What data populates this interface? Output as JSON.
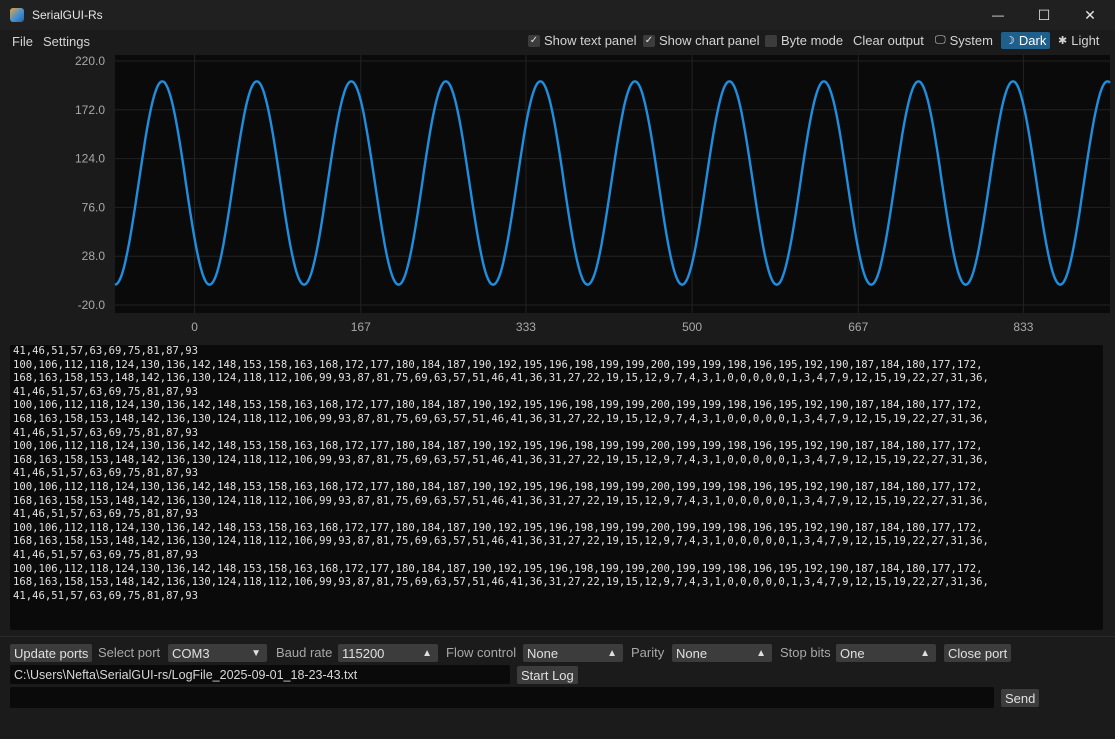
{
  "window": {
    "title": "SerialGUI-Rs",
    "minimize_glyph": "—",
    "maximize_glyph": "☐",
    "close_glyph": "✕"
  },
  "menu": {
    "file": "File",
    "settings": "Settings"
  },
  "toolbar": {
    "show_text_panel": {
      "label": "Show text panel",
      "checked": true
    },
    "show_chart_panel": {
      "label": "Show chart panel",
      "checked": true
    },
    "byte_mode": {
      "label": "Byte mode",
      "checked": false
    },
    "clear_output": "Clear output",
    "theme_system": "System",
    "theme_dark": "Dark",
    "theme_light": "Light",
    "check_glyph": "✓",
    "system_icon": "🖵",
    "dark_icon": "☽",
    "light_icon": "✱"
  },
  "chart_data": {
    "type": "line",
    "title": "",
    "xlabel": "",
    "ylabel": "",
    "ylim": [
      -20,
      220
    ],
    "xlim": [
      -80,
      920
    ],
    "y_ticks": [
      "220.0",
      "172.0",
      "124.0",
      "76.0",
      "28.0",
      "-20.0"
    ],
    "x_ticks": [
      "0",
      "167",
      "333",
      "500",
      "667",
      "833"
    ],
    "x_tick_values": [
      0,
      167,
      333,
      500,
      667,
      833
    ],
    "series": [
      {
        "name": "signal",
        "color": "#1e8fe0",
        "period": 95,
        "min": 0,
        "max": 200,
        "start_value": 0,
        "x_start": -80,
        "x_end": 920
      }
    ]
  },
  "output_lines": [
    "41,46,51,57,63,69,75,81,87,93",
    "100,106,112,118,124,130,136,142,148,153,158,163,168,172,177,180,184,187,190,192,195,196,198,199,199,200,199,199,198,196,195,192,190,187,184,180,177,172,",
    "168,163,158,153,148,142,136,130,124,118,112,106,99,93,87,81,75,69,63,57,51,46,41,36,31,27,22,19,15,12,9,7,4,3,1,0,0,0,0,0,1,3,4,7,9,12,15,19,22,27,31,36,",
    "41,46,51,57,63,69,75,81,87,93",
    "100,106,112,118,124,130,136,142,148,153,158,163,168,172,177,180,184,187,190,192,195,196,198,199,199,200,199,199,198,196,195,192,190,187,184,180,177,172,",
    "168,163,158,153,148,142,136,130,124,118,112,106,99,93,87,81,75,69,63,57,51,46,41,36,31,27,22,19,15,12,9,7,4,3,1,0,0,0,0,0,1,3,4,7,9,12,15,19,22,27,31,36,",
    "41,46,51,57,63,69,75,81,87,93",
    "100,106,112,118,124,130,136,142,148,153,158,163,168,172,177,180,184,187,190,192,195,196,198,199,199,200,199,199,198,196,195,192,190,187,184,180,177,172,",
    "168,163,158,153,148,142,136,130,124,118,112,106,99,93,87,81,75,69,63,57,51,46,41,36,31,27,22,19,15,12,9,7,4,3,1,0,0,0,0,0,1,3,4,7,9,12,15,19,22,27,31,36,",
    "41,46,51,57,63,69,75,81,87,93",
    "100,106,112,118,124,130,136,142,148,153,158,163,168,172,177,180,184,187,190,192,195,196,198,199,199,200,199,199,198,196,195,192,190,187,184,180,177,172,",
    "168,163,158,153,148,142,136,130,124,118,112,106,99,93,87,81,75,69,63,57,51,46,41,36,31,27,22,19,15,12,9,7,4,3,1,0,0,0,0,0,1,3,4,7,9,12,15,19,22,27,31,36,",
    "41,46,51,57,63,69,75,81,87,93",
    "100,106,112,118,124,130,136,142,148,153,158,163,168,172,177,180,184,187,190,192,195,196,198,199,199,200,199,199,198,196,195,192,190,187,184,180,177,172,",
    "168,163,158,153,148,142,136,130,124,118,112,106,99,93,87,81,75,69,63,57,51,46,41,36,31,27,22,19,15,12,9,7,4,3,1,0,0,0,0,0,1,3,4,7,9,12,15,19,22,27,31,36,",
    "41,46,51,57,63,69,75,81,87,93",
    "100,106,112,118,124,130,136,142,148,153,158,163,168,172,177,180,184,187,190,192,195,196,198,199,199,200,199,199,198,196,195,192,190,187,184,180,177,172,",
    "168,163,158,153,148,142,136,130,124,118,112,106,99,93,87,81,75,69,63,57,51,46,41,36,31,27,22,19,15,12,9,7,4,3,1,0,0,0,0,0,1,3,4,7,9,12,15,19,22,27,31,36,",
    "41,46,51,57,63,69,75,81,87,93"
  ],
  "controls": {
    "update_ports": "Update ports",
    "select_port_label": "Select port",
    "port_value": "COM3",
    "baud_rate_label": "Baud rate",
    "baud_rate_value": "115200",
    "flow_control_label": "Flow control",
    "flow_control_value": "None",
    "parity_label": "Parity",
    "parity_value": "None",
    "stop_bits_label": "Stop bits",
    "stop_bits_value": "One",
    "close_port": "Close port",
    "log_path": "C:\\Users\\Nefta\\SerialGUI-rs/LogFile_2025-09-01_18-23-43.txt",
    "start_log": "Start Log",
    "send_input_value": "",
    "send": "Send",
    "combo_arrow": "▼",
    "spin_arrow": "▲"
  },
  "colors": {
    "accent": "#1e8fe0",
    "active_mode": "#1f5f8b"
  }
}
